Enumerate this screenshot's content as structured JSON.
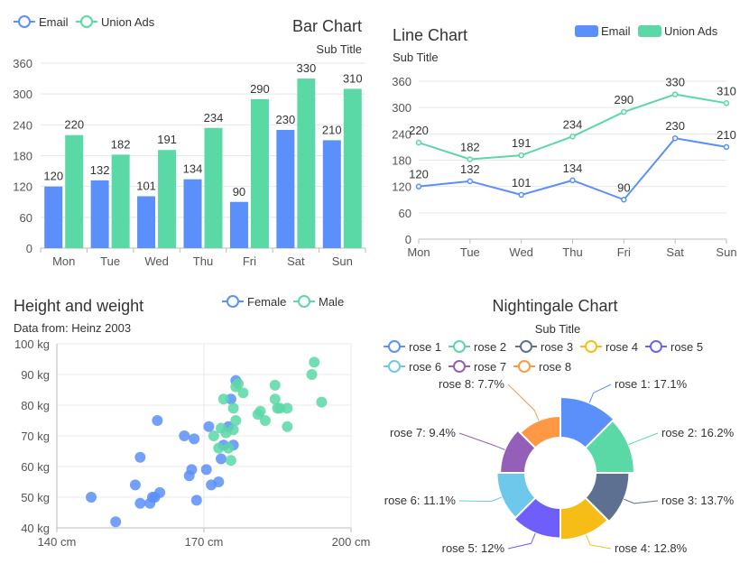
{
  "colors": {
    "email": "#5b8ff9",
    "union": "#5ad8a6",
    "female": "#5b8ff9",
    "male": "#5ad8a6",
    "roses": [
      "#5b8ff9",
      "#5ad8a6",
      "#5d7092",
      "#f6bd16",
      "#6f5ef9",
      "#6dc8ec",
      "#945fb9",
      "#ff9845"
    ]
  },
  "bar_chart": {
    "title": "Bar Chart",
    "subtitle": "Sub Title",
    "legend": [
      "Email",
      "Union Ads"
    ],
    "y_ticks": [
      "0",
      "60",
      "120",
      "180",
      "240",
      "300",
      "360"
    ],
    "chart_data": {
      "type": "bar",
      "categories": [
        "Mon",
        "Tue",
        "Wed",
        "Thu",
        "Fri",
        "Sat",
        "Sun"
      ],
      "series": [
        {
          "name": "Email",
          "values": [
            120,
            132,
            101,
            134,
            90,
            230,
            210
          ]
        },
        {
          "name": "Union Ads",
          "values": [
            220,
            182,
            191,
            234,
            290,
            330,
            310
          ]
        }
      ],
      "ylim": [
        0,
        360
      ],
      "legend_position": "top-left"
    }
  },
  "line_chart": {
    "title": "Line Chart",
    "subtitle": "Sub Title",
    "legend": [
      "Email",
      "Union Ads"
    ],
    "y_ticks": [
      "0",
      "60",
      "120",
      "180",
      "240",
      "300",
      "360"
    ],
    "chart_data": {
      "type": "line",
      "categories": [
        "Mon",
        "Tue",
        "Wed",
        "Thu",
        "Fri",
        "Sat",
        "Sun"
      ],
      "series": [
        {
          "name": "Email",
          "values": [
            120,
            132,
            101,
            134,
            90,
            230,
            210
          ]
        },
        {
          "name": "Union Ads",
          "values": [
            220,
            182,
            191,
            234,
            290,
            330,
            310
          ]
        }
      ],
      "ylim": [
        0,
        360
      ],
      "legend_position": "top-right"
    }
  },
  "scatter_chart": {
    "title": "Height and weight",
    "subtitle": "Data from: Heinz 2003",
    "legend": [
      "Female",
      "Male"
    ],
    "x_ticks": [
      "140 cm",
      "170 cm",
      "200 cm"
    ],
    "y_ticks": [
      "40 kg",
      "50 kg",
      "60 kg",
      "70 kg",
      "80 kg",
      "90 kg",
      "100 kg"
    ],
    "chart_data": {
      "type": "scatter",
      "xlim": [
        140,
        200
      ],
      "ylim": [
        40,
        100
      ],
      "series": [
        {
          "name": "Female",
          "points": [
            [
              147,
              50
            ],
            [
              152,
              42
            ],
            [
              156,
              54
            ],
            [
              157,
              63
            ],
            [
              157,
              48
            ],
            [
              159,
              48
            ],
            [
              159.5,
              50
            ],
            [
              160,
              50
            ],
            [
              160.5,
              75
            ],
            [
              161,
              51.5
            ],
            [
              166,
              70
            ],
            [
              167,
              57
            ],
            [
              167.5,
              59
            ],
            [
              168,
              69
            ],
            [
              168.5,
              49
            ],
            [
              170.5,
              59
            ],
            [
              171,
              73
            ],
            [
              171.5,
              54
            ],
            [
              173,
              55
            ],
            [
              173.5,
              62.5
            ],
            [
              174,
              67
            ],
            [
              175,
              73
            ],
            [
              175.5,
              82
            ],
            [
              176,
              67
            ],
            [
              176.5,
              88
            ]
          ]
        },
        {
          "name": "Male",
          "points": [
            [
              172,
              70
            ],
            [
              173,
              66
            ],
            [
              173.5,
              72.5
            ],
            [
              174,
              82
            ],
            [
              174.5,
              71
            ],
            [
              175,
              66
            ],
            [
              175.5,
              62
            ],
            [
              176,
              72
            ],
            [
              176,
              79
            ],
            [
              176.5,
              75
            ],
            [
              176.5,
              86
            ],
            [
              177,
              87
            ],
            [
              178,
              84
            ],
            [
              181,
              77
            ],
            [
              181.5,
              78
            ],
            [
              182.5,
              75
            ],
            [
              184.5,
              82
            ],
            [
              184.5,
              86.5
            ],
            [
              185,
              79
            ],
            [
              185.5,
              79
            ],
            [
              187,
              73
            ],
            [
              187,
              79
            ],
            [
              192,
              90
            ],
            [
              192.5,
              94
            ],
            [
              194,
              81
            ]
          ]
        }
      ],
      "legend_position": "top-right"
    }
  },
  "rose_chart": {
    "title": "Nightingale Chart",
    "subtitle": "Sub Title",
    "chart_data": {
      "type": "pie",
      "variant": "rose",
      "categories": [
        "rose 1",
        "rose 2",
        "rose 3",
        "rose 4",
        "rose 5",
        "rose 6",
        "rose 7",
        "rose 8"
      ],
      "values": [
        17.1,
        16.2,
        13.7,
        12.8,
        12,
        11.1,
        9.4,
        7.7
      ],
      "labels": [
        "rose 1: 17.1%",
        "rose 2: 16.2%",
        "rose 3: 13.7%",
        "rose 4: 12.8%",
        "rose 5: 12%",
        "rose 6: 11.1%",
        "rose 7: 9.4%",
        "rose 8: 7.7%"
      ],
      "legend_position": "top-left"
    }
  }
}
